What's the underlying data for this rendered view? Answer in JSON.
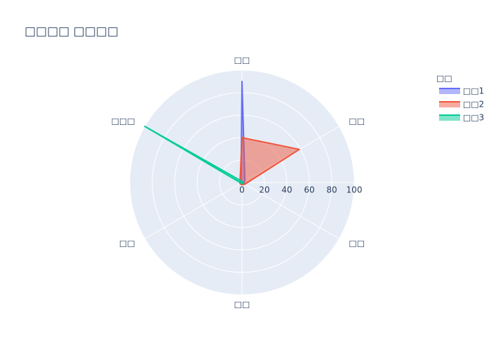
{
  "chart_data": {
    "type": "radar",
    "title": "□□□□ □□□□",
    "legend_title": "□□",
    "categories": [
      "□□",
      "□□",
      "□□",
      "□□",
      "□□",
      "□□□"
    ],
    "series": [
      {
        "name": "□□1",
        "color": "#636efa",
        "values": [
          90,
          3,
          2,
          1,
          2,
          1
        ]
      },
      {
        "name": "□□2",
        "color": "#EF553B",
        "values": [
          40,
          59,
          3,
          2,
          2,
          2
        ]
      },
      {
        "name": "□□3",
        "color": "#00cc96",
        "values": [
          1,
          1,
          1,
          1,
          1,
          100
        ]
      }
    ],
    "rlim": [
      0,
      100
    ],
    "rticks": [
      0,
      20,
      40,
      60,
      80,
      100
    ],
    "grid": true
  }
}
